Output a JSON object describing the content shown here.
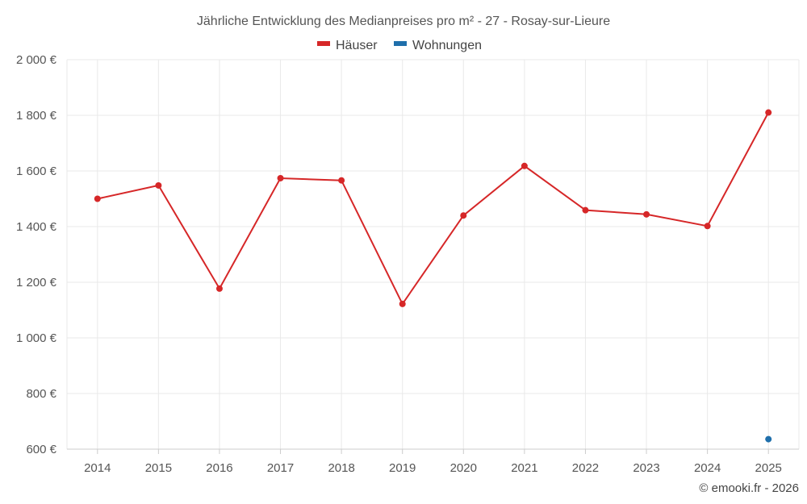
{
  "chart_data": {
    "type": "line",
    "title": "Jährliche Entwicklung des Medianpreises pro m² - 27 - Rosay-sur-Lieure",
    "categories": [
      "2014",
      "2015",
      "2016",
      "2017",
      "2018",
      "2019",
      "2020",
      "2021",
      "2022",
      "2023",
      "2024",
      "2025"
    ],
    "series": [
      {
        "name": "Häuser",
        "color": "#d62728",
        "values": [
          1500,
          1548,
          1177,
          1574,
          1566,
          1122,
          1440,
          1618,
          1459,
          1444,
          1402,
          1810
        ]
      },
      {
        "name": "Wohnungen",
        "color": "#1f6fab",
        "values": [
          null,
          null,
          null,
          null,
          null,
          null,
          null,
          null,
          null,
          null,
          null,
          636
        ]
      }
    ],
    "ylim": [
      600,
      2000
    ],
    "yticks": [
      600,
      800,
      1000,
      1200,
      1400,
      1600,
      1800,
      2000
    ],
    "ytick_labels": [
      "600 €",
      "800 €",
      "1 000 €",
      "1 200 €",
      "1 400 €",
      "1 600 €",
      "1 800 €",
      "2 000 €"
    ],
    "grid": true,
    "legend_position": "top-center"
  },
  "credit": "© emooki.fr - 2026"
}
